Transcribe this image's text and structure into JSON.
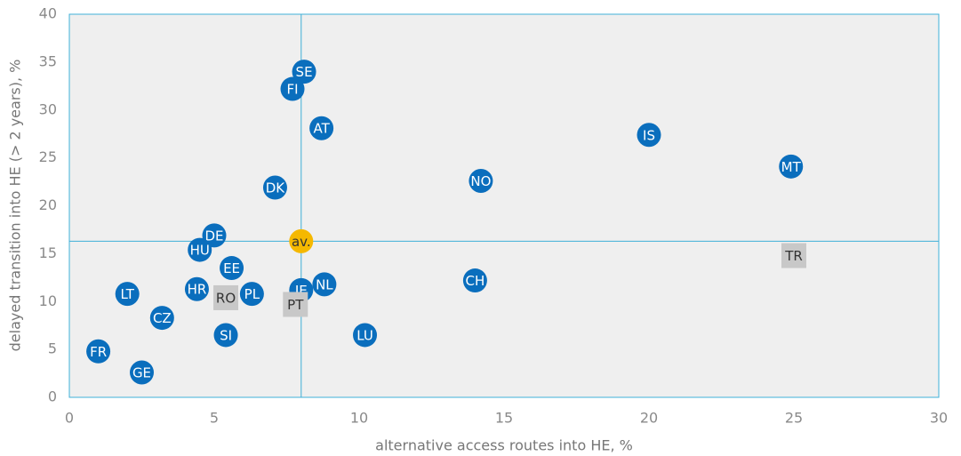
{
  "chart_data": {
    "type": "scatter",
    "x_label": "alternative access routes into HE, %",
    "y_label": "delayed transition into HE (> 2 years), %",
    "xlim": [
      0,
      30
    ],
    "xticks": [
      0,
      5,
      10,
      15,
      20,
      25,
      30
    ],
    "ylim": [
      0,
      40
    ],
    "yticks": [
      0,
      5,
      10,
      15,
      20,
      25,
      30,
      35,
      40
    ],
    "reference_lines": "av.",
    "points": [
      {
        "label": "SE",
        "x": 8.1,
        "y": 34,
        "color": "#0a6ebd"
      },
      {
        "label": "FI",
        "x": 7.7,
        "y": 32.2,
        "color": "#0a6ebd"
      },
      {
        "label": "AT",
        "x": 8.7,
        "y": 28.1,
        "color": "#0a6ebd"
      },
      {
        "label": "IS",
        "x": 20,
        "y": 27.4,
        "color": "#0a6ebd"
      },
      {
        "label": "MT",
        "x": 24.9,
        "y": 24.1,
        "color": "#0a6ebd"
      },
      {
        "label": "NO",
        "x": 14.2,
        "y": 22.6,
        "color": "#0a6ebd"
      },
      {
        "label": "DK",
        "x": 7.1,
        "y": 21.9,
        "color": "#0a6ebd"
      },
      {
        "label": "DE",
        "x": 5,
        "y": 16.9,
        "color": "#0a6ebd"
      },
      {
        "label": "av.",
        "x": 8,
        "y": 16.3,
        "color": "#f5b800"
      },
      {
        "label": "HU",
        "x": 4.5,
        "y": 15.4,
        "color": "#0a6ebd"
      },
      {
        "label": "TR",
        "x": 25,
        "y": 14.8,
        "color": "#c8c8c8"
      },
      {
        "label": "EE",
        "x": 5.6,
        "y": 13.5,
        "color": "#0a6ebd"
      },
      {
        "label": "CH",
        "x": 14,
        "y": 12.2,
        "color": "#0a6ebd"
      },
      {
        "label": "NL",
        "x": 8.8,
        "y": 11.8,
        "color": "#0a6ebd"
      },
      {
        "label": "IE",
        "x": 8,
        "y": 11.2,
        "color": "#0a6ebd"
      },
      {
        "label": "HR",
        "x": 4.4,
        "y": 11.3,
        "color": "#0a6ebd"
      },
      {
        "label": "PL",
        "x": 6.3,
        "y": 10.8,
        "color": "#0a6ebd"
      },
      {
        "label": "LT",
        "x": 2,
        "y": 10.8,
        "color": "#0a6ebd"
      },
      {
        "label": "RO",
        "x": 5.4,
        "y": 10.4,
        "color": "#c8c8c8"
      },
      {
        "label": "PT",
        "x": 7.8,
        "y": 9.7,
        "color": "#c8c8c8"
      },
      {
        "label": "CZ",
        "x": 3.2,
        "y": 8.3,
        "color": "#0a6ebd"
      },
      {
        "label": "SI",
        "x": 5.4,
        "y": 6.5,
        "color": "#0a6ebd"
      },
      {
        "label": "LU",
        "x": 10.2,
        "y": 6.5,
        "color": "#0a6ebd"
      },
      {
        "label": "FR",
        "x": 1,
        "y": 4.8,
        "color": "#0a6ebd"
      },
      {
        "label": "GE",
        "x": 2.5,
        "y": 2.6,
        "color": "#0a6ebd"
      }
    ]
  }
}
